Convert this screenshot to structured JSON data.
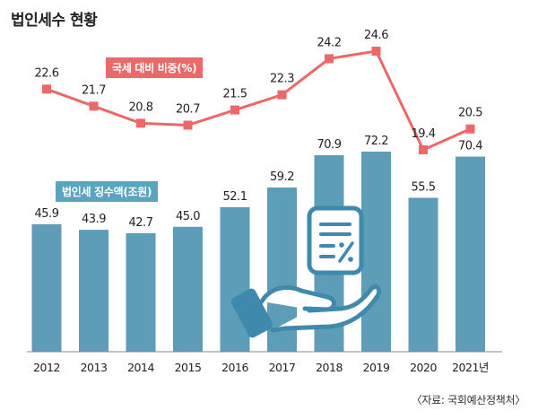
{
  "title": "법인세수 현황",
  "source": "〈자료: 국회예산정책처〉",
  "colors": {
    "bar": "#5d9db8",
    "line": "#ec6868",
    "icon": "#3f89ad",
    "text": "#222222"
  },
  "icons": {
    "illustration": "hand-holding-tax-document-icon"
  },
  "chart_data": {
    "type": "bar",
    "categories": [
      "2012",
      "2013",
      "2014",
      "2015",
      "2016",
      "2017",
      "2018",
      "2019",
      "2020",
      "2021년"
    ],
    "series": [
      {
        "name": "법인세 징수액(조원)",
        "type": "bar",
        "values": [
          45.9,
          43.9,
          42.7,
          45.0,
          52.1,
          59.2,
          70.9,
          72.2,
          55.5,
          70.4
        ],
        "labels": [
          "45.9",
          "43.9",
          "42.7",
          "45.0",
          "52.1",
          "59.2",
          "70.9",
          "72.2",
          "55.5",
          "70.4"
        ]
      },
      {
        "name": "국세 대비 비중(%)",
        "type": "line",
        "values": [
          22.6,
          21.7,
          20.8,
          20.7,
          21.5,
          22.3,
          24.2,
          24.6,
          19.4,
          20.5
        ],
        "labels": [
          "22.6",
          "21.7",
          "20.8",
          "20.7",
          "21.5",
          "22.3",
          "24.2",
          "24.6",
          "19.4",
          "20.5"
        ]
      }
    ],
    "xlabel": "",
    "ylabel": "",
    "grid": false,
    "legend": "inline-labels"
  }
}
